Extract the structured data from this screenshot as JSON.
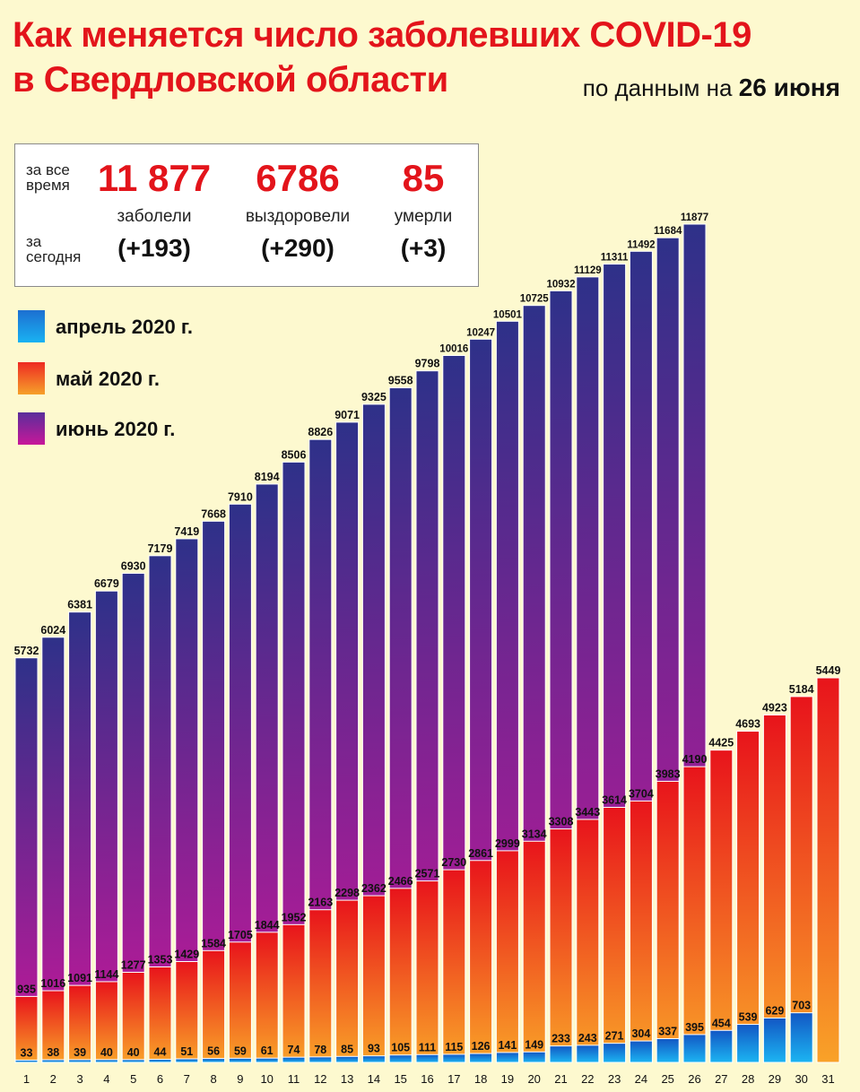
{
  "header": {
    "title_line1": "Как  меняется число  заболевших COVID-19",
    "title_line2": "в Свердловской области",
    "subtitle_prefix": "по данным на ",
    "subtitle_date": "26 июня"
  },
  "stats": {
    "all_time_label_1": "за все",
    "all_time_label_2": "время",
    "today_label_1": "за",
    "today_label_2": "сегодня",
    "columns": [
      {
        "total": "11 877",
        "caption": "заболели",
        "today": "(+193)"
      },
      {
        "total": "6786",
        "caption": "выздоровели",
        "today": "(+290)"
      },
      {
        "total": "85",
        "caption": "умерли",
        "today": "(+3)"
      }
    ]
  },
  "legend": [
    {
      "label": "апрель 2020 г.",
      "color_top": "#1d6fd1",
      "color_bottom": "#19b2f2"
    },
    {
      "label": "май 2020 г.",
      "color_top": "#ee2a22",
      "color_bottom": "#f6a12a"
    },
    {
      "label": "июнь 2020 г.",
      "color_top": "#5a2e9b",
      "color_bottom": "#c8179a"
    }
  ],
  "colors": {
    "title": "#e3141b",
    "background": "#fdf9cf",
    "june_top": "#2e3189",
    "june_bottom": "#c8179a",
    "may_top": "#e8141b",
    "may_bottom": "#f9a228",
    "april_top": "#1257c4",
    "april_bottom": "#1cb4f2"
  },
  "chart_data": {
    "type": "bar",
    "categories": [
      "1",
      "2",
      "3",
      "4",
      "5",
      "6",
      "7",
      "8",
      "9",
      "10",
      "11",
      "12",
      "13",
      "14",
      "15",
      "16",
      "17",
      "18",
      "19",
      "20",
      "21",
      "22",
      "23",
      "24",
      "25",
      "26",
      "27",
      "28",
      "29",
      "30",
      "31"
    ],
    "series": [
      {
        "name": "апрель 2020 г.",
        "values": [
          33,
          38,
          39,
          40,
          40,
          44,
          51,
          56,
          59,
          61,
          74,
          78,
          85,
          93,
          105,
          111,
          115,
          126,
          141,
          149,
          233,
          243,
          271,
          304,
          337,
          395,
          454,
          539,
          629,
          703,
          null
        ]
      },
      {
        "name": "май 2020 г.",
        "values": [
          935,
          1016,
          1091,
          1144,
          1277,
          1353,
          1429,
          1584,
          1705,
          1844,
          1952,
          2163,
          2298,
          2362,
          2466,
          2571,
          2730,
          2861,
          2999,
          3134,
          3308,
          3443,
          3614,
          3704,
          3983,
          4190,
          4425,
          4693,
          4923,
          5184,
          5449
        ]
      },
      {
        "name": "июнь 2020 г.",
        "values": [
          5732,
          6024,
          6381,
          6679,
          6930,
          7179,
          7419,
          7668,
          7910,
          8194,
          8506,
          8826,
          9071,
          9325,
          9558,
          9798,
          10016,
          10247,
          10501,
          10725,
          10932,
          11129,
          11311,
          11492,
          11684,
          11877,
          null,
          null,
          null,
          null,
          null
        ]
      }
    ],
    "ylim": [
      0,
      12200
    ]
  }
}
